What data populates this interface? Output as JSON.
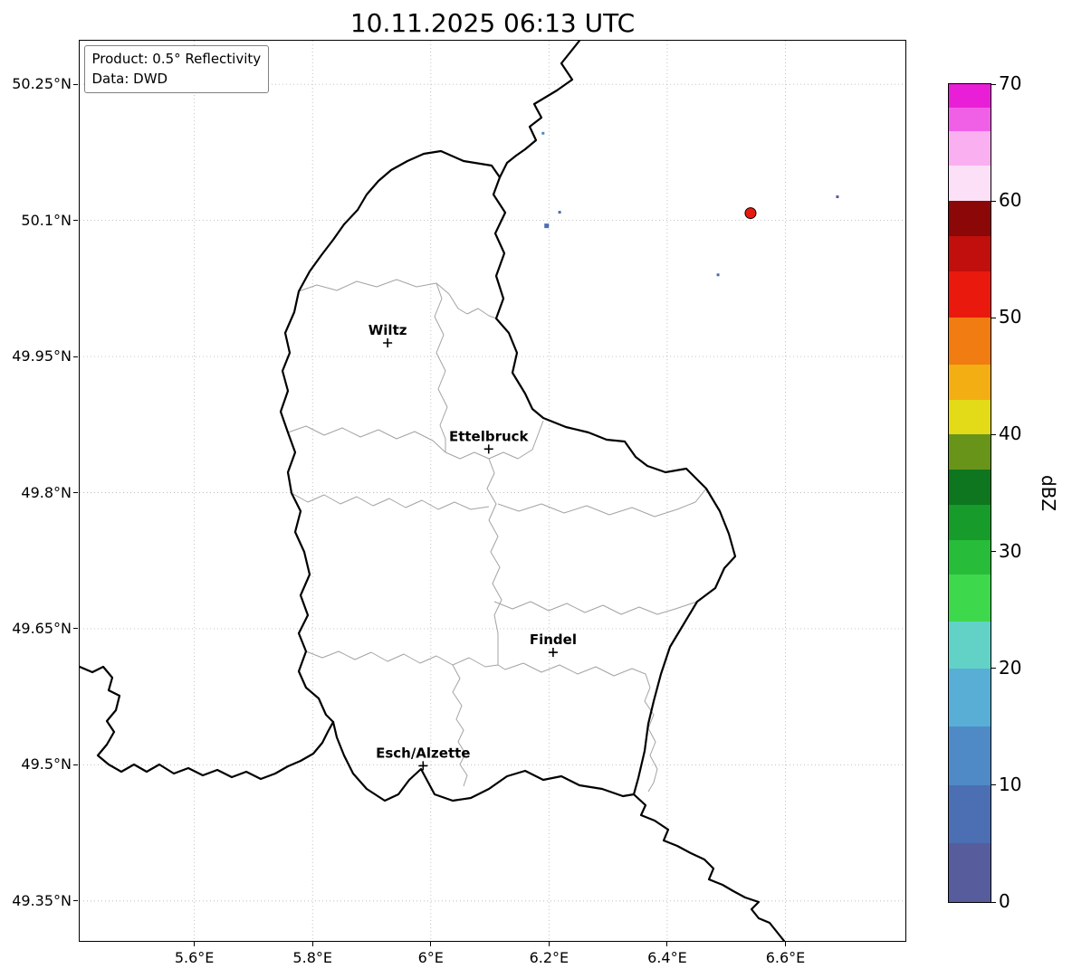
{
  "title": "10.11.2025 06:13 UTC",
  "info_box": {
    "product": "Product: 0.5° Reflectivity",
    "source": "Data: DWD"
  },
  "axes": {
    "x_tick_values": [
      5.6,
      5.8,
      6.0,
      6.2,
      6.4,
      6.6
    ],
    "x_tick_labels": [
      "5.6°E",
      "5.8°E",
      "6°E",
      "6.2°E",
      "6.4°E",
      "6.6°E"
    ],
    "y_tick_values": [
      50.25,
      50.1,
      49.95,
      49.8,
      49.65,
      49.5,
      49.35
    ],
    "y_tick_labels": [
      "50.25°N",
      "50.1°N",
      "49.95°N",
      "49.8°N",
      "49.65°N",
      "49.5°N",
      "49.35°N"
    ]
  },
  "colorbar": {
    "label": "dBZ",
    "tick_values": [
      0,
      10,
      20,
      30,
      40,
      50,
      60,
      70
    ],
    "tick_labels": [
      "0",
      "10",
      "20",
      "30",
      "40",
      "50",
      "60",
      "70"
    ],
    "value_range": [
      0,
      70
    ],
    "bands": [
      {
        "from": 0,
        "to": 5,
        "color": "#575d9c"
      },
      {
        "from": 5,
        "to": 10,
        "color": "#4c6eb2"
      },
      {
        "from": 10,
        "to": 15,
        "color": "#4f8ac6"
      },
      {
        "from": 15,
        "to": 20,
        "color": "#59aed6"
      },
      {
        "from": 20,
        "to": 24,
        "color": "#62d2c6"
      },
      {
        "from": 24,
        "to": 28,
        "color": "#3ed84d"
      },
      {
        "from": 28,
        "to": 31,
        "color": "#27bc39"
      },
      {
        "from": 31,
        "to": 34,
        "color": "#179b2a"
      },
      {
        "from": 34,
        "to": 37,
        "color": "#0e761f"
      },
      {
        "from": 37,
        "to": 40,
        "color": "#68941a"
      },
      {
        "from": 40,
        "to": 43,
        "color": "#e4db18"
      },
      {
        "from": 43,
        "to": 46,
        "color": "#f2ae12"
      },
      {
        "from": 46,
        "to": 50,
        "color": "#f07c12"
      },
      {
        "from": 50,
        "to": 54,
        "color": "#ea190e"
      },
      {
        "from": 54,
        "to": 57,
        "color": "#c00f0c"
      },
      {
        "from": 57,
        "to": 60,
        "color": "#8c0707"
      },
      {
        "from": 60,
        "to": 63,
        "color": "#fbe0f7"
      },
      {
        "from": 63,
        "to": 66,
        "color": "#f9aff0"
      },
      {
        "from": 66,
        "to": 68,
        "color": "#f060e6"
      },
      {
        "from": 68,
        "to": 70,
        "color": "#e81fd7"
      }
    ]
  },
  "chart_data": {
    "type": "map",
    "extent": {
      "lon_min": 5.406,
      "lon_max": 6.803,
      "lat_min": 49.306,
      "lat_max": 50.298
    },
    "cities": [
      {
        "name": "Wiltz",
        "lon": 5.927,
        "lat": 49.965
      },
      {
        "name": "Ettelbruck",
        "lon": 6.098,
        "lat": 49.848
      },
      {
        "name": "Findel",
        "lon": 6.207,
        "lat": 49.624
      },
      {
        "name": "Esch/Alzette",
        "lon": 5.987,
        "lat": 49.499
      }
    ],
    "echoes": [
      {
        "lon": 6.541,
        "lat": 50.108,
        "dbz": 52,
        "shape": "circle",
        "size": 12
      },
      {
        "lon": 6.196,
        "lat": 50.094,
        "dbz": 6,
        "shape": "square",
        "size": 5
      },
      {
        "lon": 6.218,
        "lat": 50.109,
        "dbz": 8,
        "shape": "square",
        "size": 3
      },
      {
        "lon": 6.486,
        "lat": 50.04,
        "dbz": 8,
        "shape": "square",
        "size": 3
      },
      {
        "lon": 6.688,
        "lat": 50.126,
        "dbz": 3,
        "shape": "square",
        "size": 3
      },
      {
        "lon": 6.19,
        "lat": 50.196,
        "dbz": 10,
        "shape": "square",
        "size": 3
      }
    ]
  }
}
